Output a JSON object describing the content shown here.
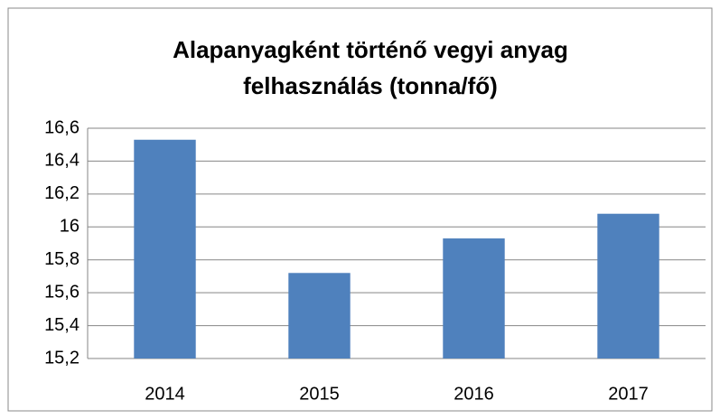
{
  "chart_data": {
    "type": "bar",
    "title": [
      "Alapanyagként történő vegyi anyag",
      "felhasználás (tonna/fő)"
    ],
    "categories": [
      "2014",
      "2015",
      "2016",
      "2017"
    ],
    "values": [
      16.53,
      15.72,
      15.93,
      16.08
    ],
    "color": "#4f81bd",
    "ylim": [
      15.2,
      16.6
    ],
    "yticks": [
      {
        "value": 15.2,
        "label": "15,2"
      },
      {
        "value": 15.4,
        "label": "15,4"
      },
      {
        "value": 15.6,
        "label": "15,6"
      },
      {
        "value": 15.8,
        "label": "15,8"
      },
      16,
      {
        "value": 16.2,
        "label": "16,2"
      },
      {
        "value": 16.4,
        "label": "16,4"
      },
      {
        "value": 16.6,
        "label": "16,6"
      }
    ],
    "grid": true
  }
}
